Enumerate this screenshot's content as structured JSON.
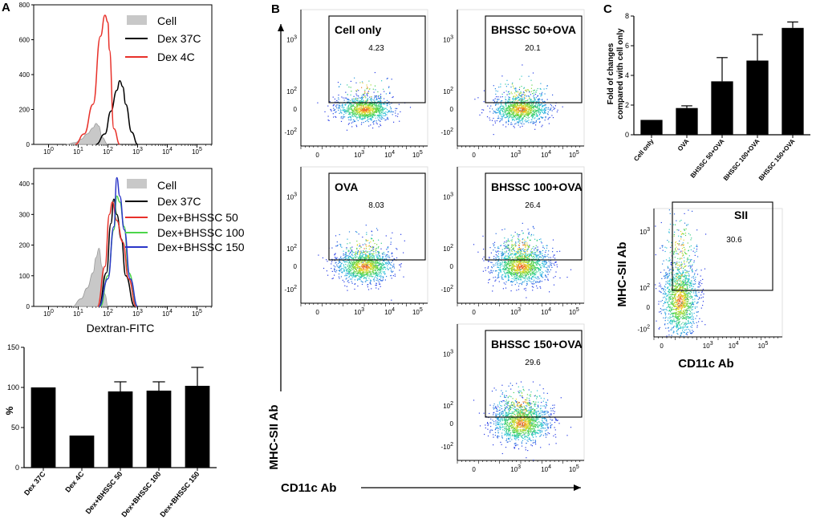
{
  "panel_labels": [
    "A",
    "B",
    "C"
  ],
  "colors": {
    "cell_fill": "#c8c8c8",
    "dex37": "#000000",
    "dex4": "#e8312a",
    "bh50": "#e8312a",
    "bh100": "#4cd64a",
    "bh150": "#2a35c8"
  },
  "chart_data": [
    {
      "id": "A1",
      "type": "area",
      "title": "",
      "xlabel": "",
      "ylabel": "",
      "x_scale": "log",
      "xticks": [
        "10",
        "10",
        "10",
        "10",
        "10",
        "10"
      ],
      "xtick_exps": [
        "0",
        "1",
        "2",
        "3",
        "4",
        "5"
      ],
      "yticks": [
        "0",
        "200",
        "400",
        "600",
        "800"
      ],
      "ylim": [
        0,
        800
      ],
      "legend": [
        "Cell",
        "Dex 37C",
        "Dex 4C"
      ],
      "series": [
        {
          "name": "Cell",
          "style": "filled",
          "x": [
            0.6,
            0.9,
            1.1,
            1.3,
            1.5,
            1.6,
            1.7,
            1.8,
            2.0
          ],
          "y": [
            0,
            10,
            30,
            60,
            95,
            120,
            105,
            40,
            0
          ]
        },
        {
          "name": "Dex 37C",
          "x": [
            1.6,
            1.9,
            2.1,
            2.3,
            2.4,
            2.5,
            2.6,
            2.8,
            3.0
          ],
          "y": [
            0,
            60,
            190,
            310,
            365,
            330,
            230,
            70,
            0
          ]
        },
        {
          "name": "Dex 4C",
          "x": [
            0.9,
            1.2,
            1.5,
            1.75,
            1.9,
            2.0,
            2.05,
            2.2,
            2.4
          ],
          "y": [
            0,
            60,
            230,
            620,
            740,
            700,
            540,
            90,
            0
          ]
        }
      ]
    },
    {
      "id": "A2",
      "type": "area",
      "title": "",
      "xlabel": "Dextran-FITC",
      "ylabel": "",
      "x_scale": "log",
      "xticks": [
        "10",
        "10",
        "10",
        "10",
        "10",
        "10"
      ],
      "xtick_exps": [
        "0",
        "1",
        "2",
        "3",
        "4",
        "5"
      ],
      "yticks": [
        "0",
        "100",
        "200",
        "300",
        "400"
      ],
      "ylim": [
        0,
        450
      ],
      "legend": [
        "Cell",
        "Dex 37C",
        "Dex+BHSSC 50",
        "Dex+BHSSC 100",
        "Dex+BHSSC 150"
      ],
      "series": [
        {
          "name": "Cell",
          "style": "filled",
          "x": [
            0.8,
            1.1,
            1.3,
            1.5,
            1.6,
            1.7,
            1.8,
            1.9,
            2.0
          ],
          "y": [
            0,
            25,
            60,
            110,
            160,
            190,
            130,
            40,
            0
          ]
        },
        {
          "name": "Dex 37C",
          "x": [
            1.7,
            1.95,
            2.1,
            2.2,
            2.3,
            2.45,
            2.6,
            2.9
          ],
          "y": [
            0,
            110,
            270,
            350,
            300,
            220,
            100,
            0
          ]
        },
        {
          "name": "Dex+BHSSC 50",
          "x": [
            1.65,
            1.9,
            2.05,
            2.15,
            2.3,
            2.5,
            2.7,
            2.95
          ],
          "y": [
            0,
            130,
            300,
            340,
            280,
            210,
            90,
            0
          ]
        },
        {
          "name": "Dex+BHSSC 100",
          "x": [
            1.75,
            2.0,
            2.2,
            2.3,
            2.4,
            2.55,
            2.7,
            3.0
          ],
          "y": [
            0,
            100,
            250,
            360,
            340,
            260,
            110,
            0
          ]
        },
        {
          "name": "Dex+BHSSC 150",
          "x": [
            1.7,
            2.0,
            2.2,
            2.3,
            2.4,
            2.55,
            2.75,
            3.0
          ],
          "y": [
            0,
            90,
            260,
            420,
            360,
            250,
            90,
            0
          ]
        }
      ]
    },
    {
      "id": "A3",
      "type": "bar",
      "title": "",
      "xlabel": "",
      "ylabel": "%",
      "ylim": [
        0,
        150
      ],
      "yticks": [
        "0",
        "50",
        "100",
        "150"
      ],
      "categories": [
        "Dex 37C",
        "Dex 4C",
        "Dex+BHSSC 50",
        "Dex+BHSSC 100",
        "Dex+BHSSC 150"
      ],
      "values": [
        100,
        40,
        95,
        96,
        102
      ],
      "errors": [
        0,
        0,
        12,
        11,
        23
      ]
    },
    {
      "id": "B",
      "type": "scatter",
      "title": "",
      "xlabel": "CD11c Ab",
      "ylabel": "MHC-SII Ab",
      "xticks": [
        "0",
        "10",
        "10",
        "10"
      ],
      "xtick_exps": [
        "",
        "3",
        "4",
        "5"
      ],
      "yticks": [
        "10",
        "10",
        "0",
        "-10"
      ],
      "ytick_exps": [
        "3",
        "2",
        "",
        "2"
      ],
      "gates": [
        {
          "name": "Cell only",
          "value": "4.23"
        },
        {
          "name": "BHSSC 50+OVA",
          "value": "20.1"
        },
        {
          "name": "OVA",
          "value": "8.03"
        },
        {
          "name": "BHSSC 100+OVA",
          "value": "26.4"
        },
        {
          "name": "BHSSC 150+OVA",
          "value": "29.6"
        }
      ]
    },
    {
      "id": "C1",
      "type": "bar",
      "title": "",
      "xlabel": "",
      "ylabel_lines": [
        "Fold of changes",
        "compared with cell only"
      ],
      "ylim": [
        0,
        8
      ],
      "yticks": [
        "0",
        "2",
        "4",
        "6",
        "8"
      ],
      "categories": [
        "Cell only",
        "OVA",
        "BHSSC 50+OVA",
        "BHSSC 100+OVA",
        "BHSSC 150+OVA"
      ],
      "values": [
        1.0,
        1.8,
        3.6,
        5.0,
        7.2
      ],
      "errors": [
        0,
        0.15,
        1.6,
        1.75,
        0.4
      ]
    },
    {
      "id": "C2",
      "type": "scatter",
      "title": "",
      "xlabel": "CD11c Ab",
      "ylabel": "MHC-SII Ab",
      "xticks": [
        "0",
        "10",
        "10",
        "10"
      ],
      "xtick_exps": [
        "",
        "3",
        "4",
        "5"
      ],
      "yticks": [
        "10",
        "10",
        "0",
        "-10"
      ],
      "ytick_exps": [
        "3",
        "2",
        "",
        "2"
      ],
      "gates": [
        {
          "name": "SII",
          "value": "30.6"
        }
      ]
    }
  ]
}
